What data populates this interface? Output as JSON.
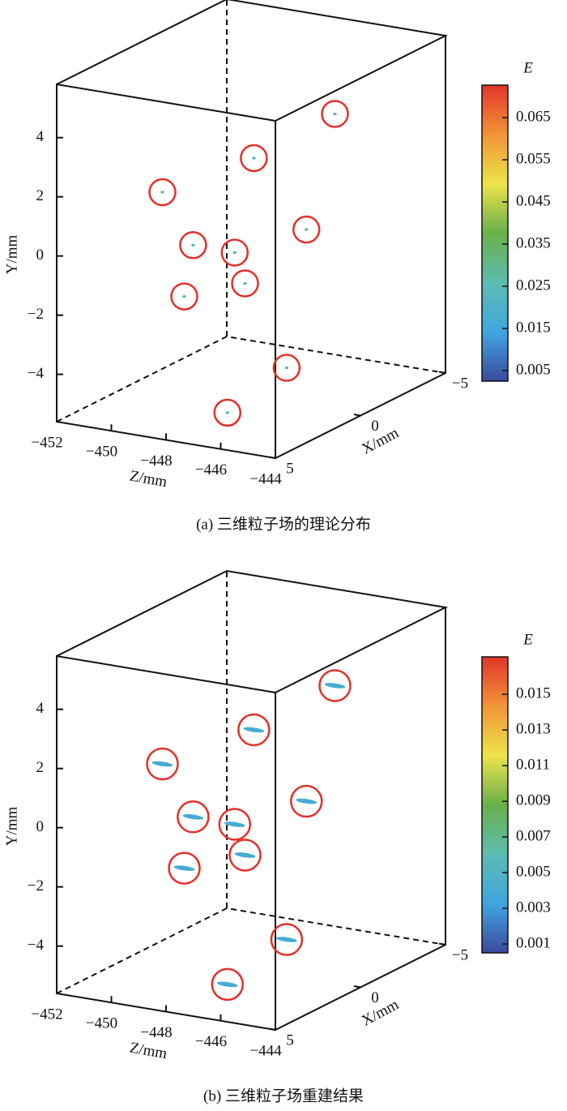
{
  "chart_data": [
    {
      "type": "scatter3d",
      "caption": "(a) 三维粒子场的理论分布",
      "xlabel": "X/mm",
      "ylabel": "Y/mm",
      "zlabel": "Z/mm",
      "x": [
        -3,
        0,
        2,
        -1,
        1,
        0,
        1,
        2,
        0,
        3
      ],
      "y": [
        3.3,
        2.5,
        1.6,
        0.0,
        -0.4,
        -0.8,
        -1.4,
        -1.8,
        -4.4,
        -5.1
      ],
      "z": [
        -446.8,
        -447.9,
        -450.0,
        -446.6,
        -449.5,
        -448.6,
        -447.6,
        -449.2,
        -446.7,
        -447.0
      ],
      "values": [
        0.022,
        0.022,
        0.022,
        0.022,
        0.022,
        0.022,
        0.022,
        0.022,
        0.022,
        0.022
      ],
      "marker": "dot",
      "highlight_color": "#e2312a",
      "xlim": [
        -5,
        5
      ],
      "xticks": [
        {
          "value": -5,
          "label": "−5"
        },
        0,
        5
      ],
      "ylim": [
        -5.6,
        5.8
      ],
      "yticks": [
        {
          "value": -4,
          "label": "−4"
        },
        {
          "value": -2,
          "label": "−2"
        },
        0,
        2,
        4
      ],
      "zlim": [
        -452,
        -444
      ],
      "zticks": [
        {
          "value": -452,
          "label": "−452"
        },
        {
          "value": -450,
          "label": "−450"
        },
        {
          "value": -448,
          "label": "−448"
        },
        {
          "value": -446,
          "label": "−446"
        },
        {
          "value": -444,
          "label": "−444"
        }
      ],
      "colorbar": {
        "title": "E",
        "clim": [
          0.0025,
          0.0727
        ],
        "ticks": [
          0.005,
          0.015,
          0.025,
          0.035,
          0.045,
          0.055,
          0.065
        ]
      },
      "colormap": [
        "#3a4a9c",
        "#3fa6e0",
        "#5cbcb0",
        "#6ab04a",
        "#ece44a",
        "#f19436",
        "#e2352c"
      ]
    },
    {
      "type": "scatter3d",
      "caption": "(b) 三维粒子场重建结果",
      "xlabel": "X/mm",
      "ylabel": "Y/mm",
      "zlabel": "Z/mm",
      "x": [
        -3,
        0,
        2,
        -1,
        1,
        0,
        1,
        2,
        0,
        3
      ],
      "y": [
        3.3,
        2.5,
        1.6,
        0.0,
        -0.4,
        -0.8,
        -1.4,
        -1.8,
        -4.4,
        -5.1
      ],
      "z": [
        -446.8,
        -447.9,
        -450.0,
        -446.6,
        -449.5,
        -448.6,
        -447.6,
        -449.2,
        -446.7,
        -447.0
      ],
      "values": [
        0.004,
        0.004,
        0.004,
        0.004,
        0.004,
        0.004,
        0.004,
        0.004,
        0.004,
        0.004
      ],
      "marker": "streak",
      "highlight_color": "#e2312a",
      "xlim": [
        -5,
        5
      ],
      "xticks": [
        {
          "value": -5,
          "label": "−5"
        },
        0,
        5
      ],
      "ylim": [
        -5.6,
        5.8
      ],
      "yticks": [
        {
          "value": -4,
          "label": "−4"
        },
        {
          "value": -2,
          "label": "−2"
        },
        0,
        2,
        4
      ],
      "zlim": [
        -452,
        -444
      ],
      "zticks": [
        {
          "value": -452,
          "label": "−452"
        },
        {
          "value": -450,
          "label": "−450"
        },
        {
          "value": -448,
          "label": "−448"
        },
        {
          "value": -446,
          "label": "−446"
        },
        {
          "value": -444,
          "label": "−444"
        }
      ],
      "colorbar": {
        "title": "E",
        "clim": [
          0.0005,
          0.0171
        ],
        "ticks": [
          0.001,
          0.003,
          0.005,
          0.007,
          0.009,
          0.011,
          0.013,
          0.015
        ]
      },
      "colormap": [
        "#3a4a9c",
        "#3fa6e0",
        "#5cbcb0",
        "#6ab04a",
        "#ece44a",
        "#f19436",
        "#e2352c"
      ]
    }
  ]
}
